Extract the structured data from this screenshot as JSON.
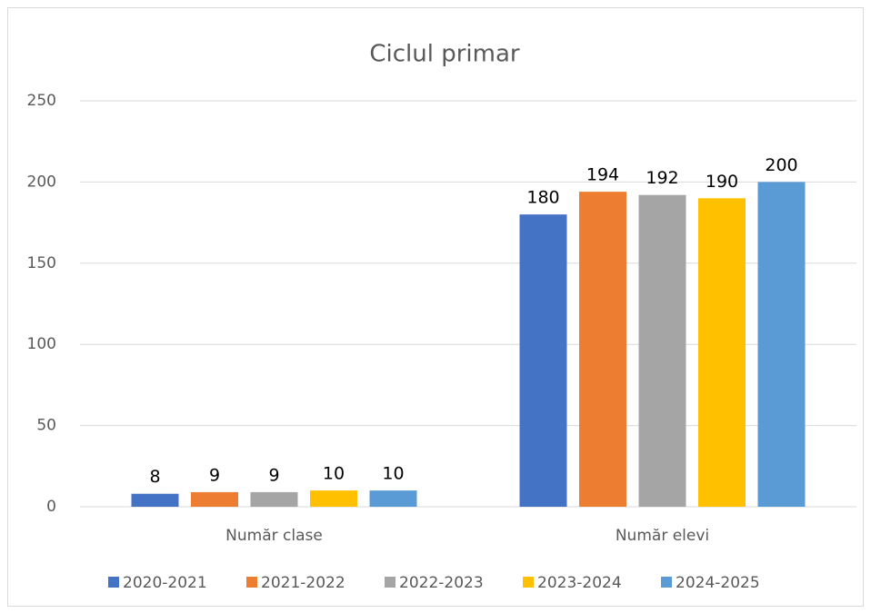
{
  "chart_data": {
    "type": "bar",
    "title": "Ciclul primar",
    "categories": [
      "Număr clase",
      "Număr elevi"
    ],
    "series": [
      {
        "name": "2020-2021",
        "color": "#4472c4",
        "values": [
          8,
          180
        ]
      },
      {
        "name": "2021-2022",
        "color": "#ed7d31",
        "values": [
          9,
          194
        ]
      },
      {
        "name": "2022-2023",
        "color": "#a5a5a5",
        "values": [
          9,
          192
        ]
      },
      {
        "name": "2023-2024",
        "color": "#ffc000",
        "values": [
          10,
          190
        ]
      },
      {
        "name": "2024-2025",
        "color": "#5b9bd5",
        "values": [
          10,
          200
        ]
      }
    ],
    "ylim": [
      0,
      250
    ],
    "yticks": [
      0,
      50,
      100,
      150,
      200,
      250
    ],
    "grid": true,
    "legend": "bottom"
  }
}
